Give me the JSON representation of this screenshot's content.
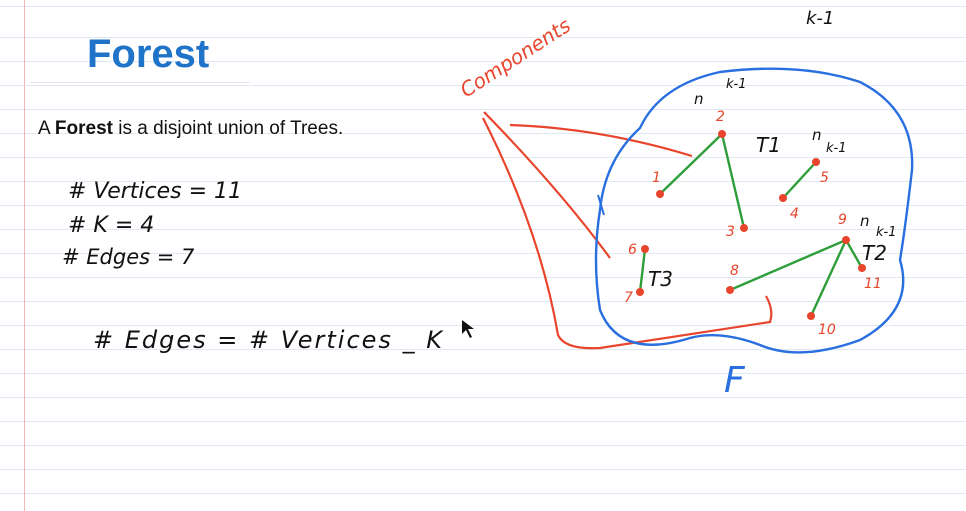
{
  "page": {
    "title": "Forest",
    "definition": {
      "prefix": "A ",
      "term": "Forest",
      "suffix": " is a disjoint union of Trees."
    }
  },
  "notes": {
    "vertices": "# Vertices = 11",
    "k": "# K = 4",
    "edges": "# Edges = 7",
    "formula": "# Edges = # Vertices _ K",
    "components": "Components",
    "forest_label": "F",
    "top_right": "k-1"
  },
  "diagram": {
    "tree_labels": {
      "t1": "T1",
      "t2": "T2",
      "t3": "T3"
    },
    "n_labels": {
      "t1": "n",
      "t2": "n",
      "t3": "n"
    },
    "nk1_labels": {
      "t1": "k-1",
      "t2": "k-1",
      "t3": "k-1"
    },
    "vertices": [
      {
        "id": "v1",
        "label": "1"
      },
      {
        "id": "v2",
        "label": "2"
      },
      {
        "id": "v3",
        "label": "3"
      },
      {
        "id": "v4",
        "label": "4"
      },
      {
        "id": "v5",
        "label": "5"
      },
      {
        "id": "v6",
        "label": "6"
      },
      {
        "id": "v7",
        "label": "7"
      },
      {
        "id": "v8",
        "label": "8"
      },
      {
        "id": "v9",
        "label": "9"
      },
      {
        "id": "v10",
        "label": "10"
      },
      {
        "id": "v11",
        "label": "11"
      }
    ]
  },
  "colors": {
    "title": "#1f73c8",
    "red_ink": "#e8452c",
    "green_ink": "#2e9e3a",
    "blue_ink": "#2a6fe0",
    "black_ink": "#111111"
  }
}
